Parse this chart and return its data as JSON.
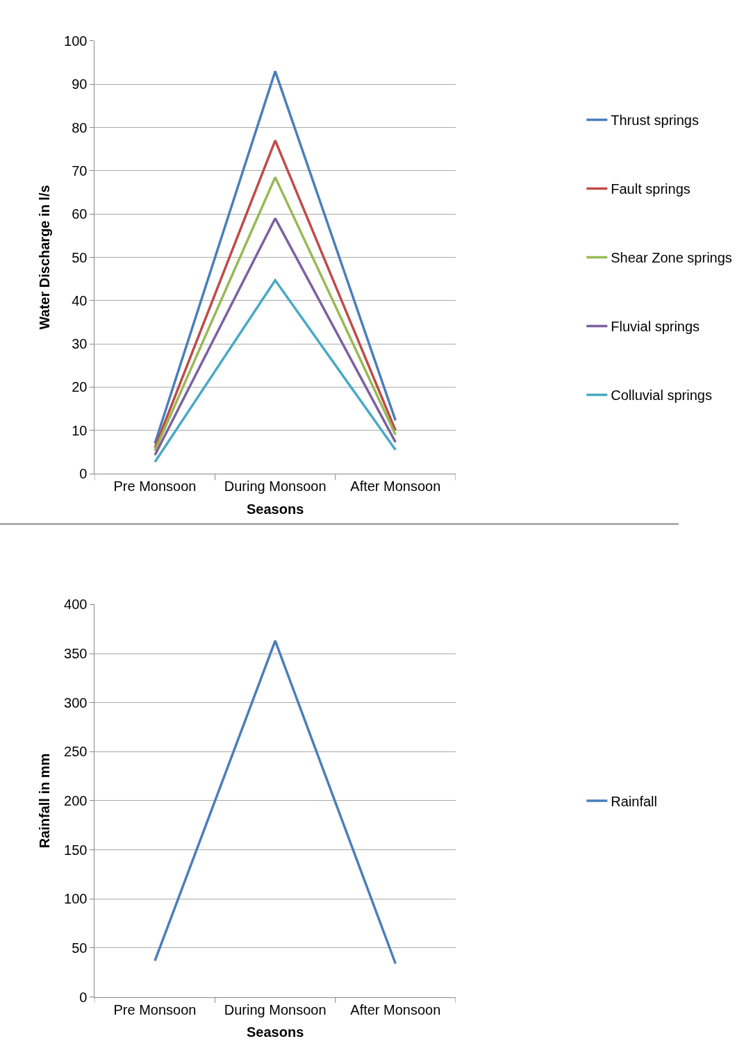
{
  "chart_data": [
    {
      "type": "line",
      "xlabel": "Seasons",
      "ylabel": "Water Discharge in l/s",
      "categories": [
        "Pre Monsoon",
        "During Monsoon",
        "After Monsoon"
      ],
      "ylim": [
        0,
        100
      ],
      "yticks": [
        0,
        10,
        20,
        30,
        40,
        50,
        60,
        70,
        80,
        90,
        100
      ],
      "grid": "y",
      "legend": "right",
      "marker": "none",
      "line_style": "solid",
      "series": [
        {
          "name": "Thrust springs",
          "color": "#4a7ebb",
          "values": [
            7,
            93,
            12.3
          ]
        },
        {
          "name": "Fault springs",
          "color": "#be4b48",
          "values": [
            6,
            77,
            10
          ]
        },
        {
          "name": "Shear Zone springs",
          "color": "#98b954",
          "values": [
            5.3,
            68.5,
            9
          ]
        },
        {
          "name": "Fluvial springs",
          "color": "#7d60a0",
          "values": [
            4.3,
            59,
            7.3
          ]
        },
        {
          "name": "Colluvial springs",
          "color": "#46aac5",
          "values": [
            2.7,
            44.7,
            5.5
          ]
        }
      ]
    },
    {
      "type": "line",
      "xlabel": "Seasons",
      "ylabel": "Rainfall in mm",
      "categories": [
        "Pre Monsoon",
        "During Monsoon",
        "After Monsoon"
      ],
      "ylim": [
        0,
        400
      ],
      "yticks": [
        0,
        50,
        100,
        150,
        200,
        250,
        300,
        350,
        400
      ],
      "grid": "y",
      "legend": "right",
      "marker": "none",
      "line_style": "solid",
      "series": [
        {
          "name": "Rainfall",
          "color": "#4a7ebb",
          "values": [
            37,
            363,
            34
          ]
        }
      ]
    }
  ]
}
